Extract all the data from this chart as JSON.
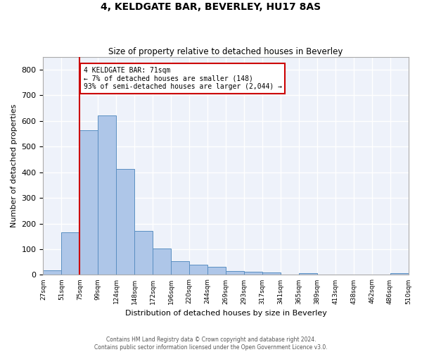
{
  "title": "4, KELDGATE BAR, BEVERLEY, HU17 8AS",
  "subtitle": "Size of property relative to detached houses in Beverley",
  "xlabel": "Distribution of detached houses by size in Beverley",
  "ylabel": "Number of detached properties",
  "bar_values": [
    18,
    165,
    565,
    620,
    413,
    172,
    103,
    52,
    40,
    30,
    15,
    13,
    10,
    0,
    8,
    0,
    0,
    0,
    0,
    7
  ],
  "categories": [
    "27sqm",
    "51sqm",
    "75sqm",
    "99sqm",
    "124sqm",
    "148sqm",
    "172sqm",
    "196sqm",
    "220sqm",
    "244sqm",
    "269sqm",
    "293sqm",
    "317sqm",
    "341sqm",
    "365sqm",
    "389sqm",
    "413sqm",
    "438sqm",
    "462sqm",
    "486sqm",
    "510sqm"
  ],
  "bar_color": "#aec6e8",
  "bar_edge_color": "#5a8fc2",
  "vline_color": "#cc0000",
  "annotation_text": "4 KELDGATE BAR: 71sqm\n← 7% of detached houses are smaller (148)\n93% of semi-detached houses are larger (2,044) →",
  "annotation_box_color": "#cc0000",
  "ylim": [
    0,
    850
  ],
  "yticks": [
    0,
    100,
    200,
    300,
    400,
    500,
    600,
    700,
    800
  ],
  "background_color": "#eef2fa",
  "grid_color": "#ffffff",
  "footer_line1": "Contains HM Land Registry data © Crown copyright and database right 2024.",
  "footer_line2": "Contains public sector information licensed under the Open Government Licence v3.0."
}
